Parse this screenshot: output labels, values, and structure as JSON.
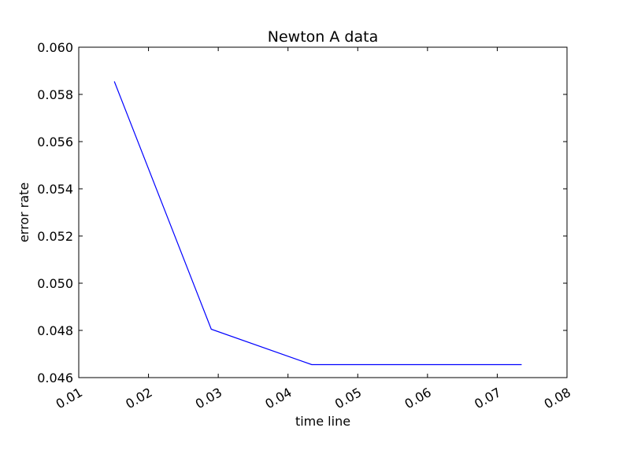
{
  "chart_data": {
    "type": "line",
    "title": "Newton A data",
    "xlabel": "time line",
    "ylabel": "error rate",
    "xlim": [
      0.01,
      0.08
    ],
    "ylim": [
      0.046,
      0.06
    ],
    "x_ticks": [
      0.01,
      0.02,
      0.03,
      0.04,
      0.05,
      0.06,
      0.07,
      0.08
    ],
    "x_tick_labels": [
      "0.01",
      "0.02",
      "0.03",
      "0.04",
      "0.05",
      "0.06",
      "0.07",
      "0.08"
    ],
    "y_ticks": [
      0.046,
      0.048,
      0.05,
      0.052,
      0.054,
      0.056,
      0.058,
      0.06
    ],
    "y_tick_labels": [
      "0.046",
      "0.048",
      "0.050",
      "0.052",
      "0.054",
      "0.056",
      "0.058",
      "0.060"
    ],
    "grid": false,
    "series": [
      {
        "color": "#0000ff",
        "x": [
          0.0151,
          0.029,
          0.0434,
          0.0735
        ],
        "y": [
          0.05855,
          0.04805,
          0.04655,
          0.04655
        ]
      }
    ]
  }
}
